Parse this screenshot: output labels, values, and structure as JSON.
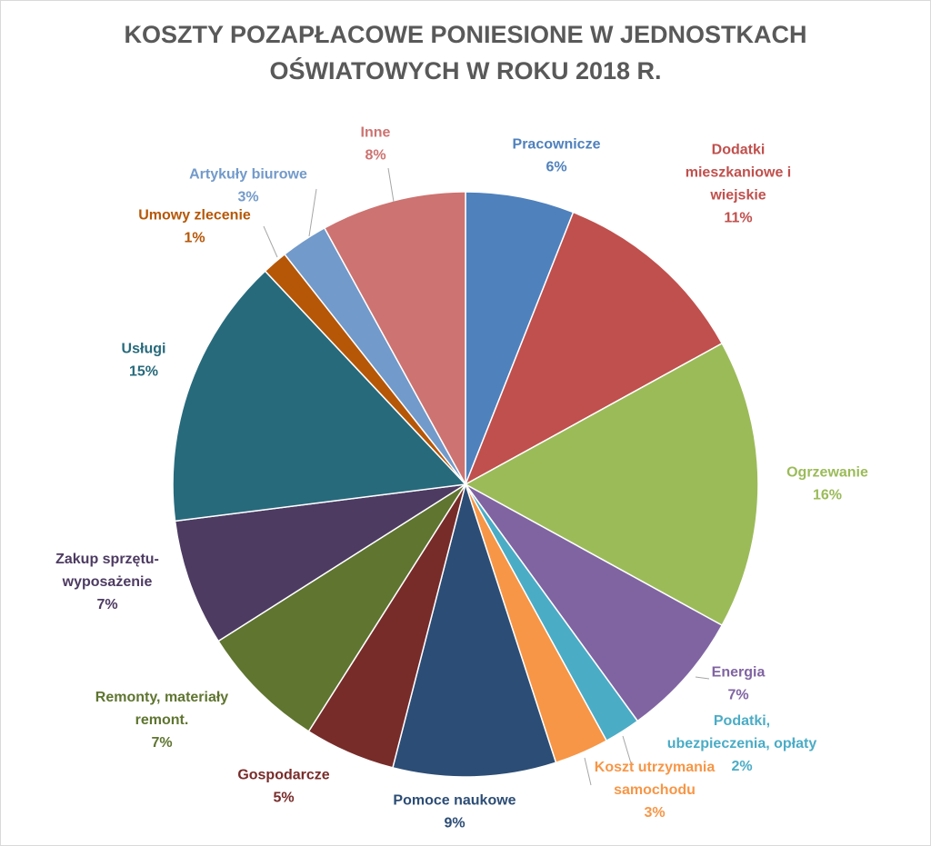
{
  "chart_data": {
    "type": "pie",
    "title_lines": [
      "KOSZTY POZAPŁACOWE PONIESIONE W JEDNOSTKACH",
      "OŚWIATOWYCH W ROKU 2018 R."
    ],
    "start_angle_deg": 0,
    "direction": "clockwise",
    "slices": [
      {
        "label": "Pracownicze",
        "label_lines": [
          "Pracownicze"
        ],
        "value": 6,
        "display": "6%",
        "color": "#4F81BD",
        "label_color": "#4F81BD"
      },
      {
        "label": "Dodatki mieszkaniowe i wiejskie",
        "label_lines": [
          "Dodatki",
          "mieszkaniowe i",
          "wiejskie"
        ],
        "value": 11,
        "display": "11%",
        "color": "#C0504D",
        "label_color": "#C0504D"
      },
      {
        "label": "Ogrzewanie",
        "label_lines": [
          "Ogrzewanie"
        ],
        "value": 16,
        "display": "16%",
        "color": "#9BBB59",
        "label_color": "#9BBB59"
      },
      {
        "label": "Energia",
        "label_lines": [
          "Energia"
        ],
        "value": 7,
        "display": "7%",
        "color": "#8064A2",
        "label_color": "#8064A2"
      },
      {
        "label": "Podatki, ubezpieczenia, opłaty",
        "label_lines": [
          "Podatki,",
          "ubezpieczenia, opłaty"
        ],
        "value": 2,
        "display": "2%",
        "color": "#4BACC6",
        "label_color": "#4BACC6"
      },
      {
        "label": "Koszt utrzymania samochodu",
        "label_lines": [
          "Koszt utrzymania",
          "samochodu"
        ],
        "value": 3,
        "display": "3%",
        "color": "#F79646",
        "label_color": "#F79646"
      },
      {
        "label": "Pomoce naukowe",
        "label_lines": [
          "Pomoce naukowe"
        ],
        "value": 9,
        "display": "9%",
        "color": "#2C4D75",
        "label_color": "#2C4D75"
      },
      {
        "label": "Gospodarcze",
        "label_lines": [
          "Gospodarcze"
        ],
        "value": 5,
        "display": "5%",
        "color": "#772C2A",
        "label_color": "#772C2A"
      },
      {
        "label": "Remonty, materiały remont.",
        "label_lines": [
          "Remonty, materiały",
          "remont."
        ],
        "value": 7,
        "display": "7%",
        "color": "#5F7530",
        "label_color": "#5F7530"
      },
      {
        "label": "Zakup sprzętu-wyposażenie",
        "label_lines": [
          "Zakup sprzętu-",
          "wyposażenie"
        ],
        "value": 7,
        "display": "7%",
        "color": "#4D3B62",
        "label_color": "#4D3B62"
      },
      {
        "label": "Usługi",
        "label_lines": [
          "Usługi"
        ],
        "value": 15,
        "display": "15%",
        "color": "#276A7C",
        "label_color": "#276A7C"
      },
      {
        "label": "Umowy zlecenie",
        "label_lines": [
          "Umowy zlecenie"
        ],
        "value": 1.4,
        "display": "1%",
        "color": "#B65708",
        "label_color": "#B65708"
      },
      {
        "label": "Artykuły biurowe",
        "label_lines": [
          "Artykuły biurowe"
        ],
        "value": 2.6,
        "display": "3%",
        "color": "#729ACA",
        "label_color": "#729ACA"
      },
      {
        "label": "Inne",
        "label_lines": [
          "Inne"
        ],
        "value": 8,
        "display": "8%",
        "color": "#CD7371",
        "label_color": "#CD7371"
      }
    ]
  }
}
